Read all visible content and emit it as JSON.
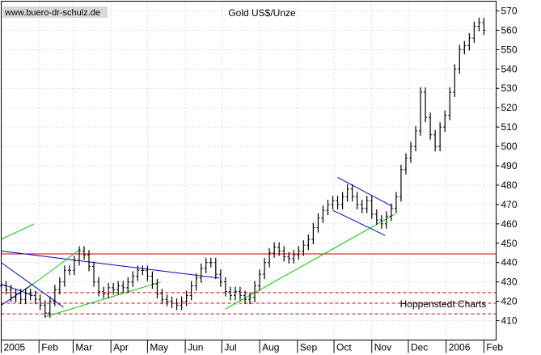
{
  "chart_data": {
    "type": "ohlc",
    "title": "Gold US$/Unze",
    "watermark": "www.buero-dr-schulz.de",
    "source": "Hoppenstedt Charts",
    "y_axis": {
      "position": "right",
      "ylim": [
        400,
        575
      ],
      "ticks": [
        410,
        420,
        430,
        440,
        450,
        460,
        470,
        480,
        490,
        500,
        510,
        520,
        530,
        540,
        550,
        560,
        570
      ]
    },
    "x_axis": {
      "labels": [
        "2005",
        "Feb",
        "Mar",
        "Apr",
        "May",
        "Jun",
        "Jul",
        "Aug",
        "Sep",
        "Oct",
        "Nov",
        "Dec",
        "2006",
        "Feb"
      ],
      "range": [
        "2005-01-01",
        "2006-02-11"
      ]
    },
    "grid": "dashed",
    "horizontal_lines": [
      {
        "value": 444.5,
        "style": "solid",
        "color": "#cc0000"
      },
      {
        "value": 424.5,
        "style": "dashed",
        "color": "#cc0000"
      },
      {
        "value": 419.0,
        "style": "dashed",
        "color": "#cc0000"
      },
      {
        "value": 413.5,
        "style": "dashed",
        "color": "#cc0000"
      }
    ],
    "trendlines": [
      {
        "color": "#0000cc",
        "from": [
          "2005-01-01",
          446
        ],
        "to": [
          "2005-06-29",
          432
        ]
      },
      {
        "color": "#0000cc",
        "from": [
          "2005-01-01",
          440
        ],
        "to": [
          "2005-02-21",
          417
        ]
      },
      {
        "color": "#0000cc",
        "from": [
          "2005-01-01",
          418
        ],
        "to": [
          "2005-01-27",
          429
        ]
      },
      {
        "color": "#0000cc",
        "from": [
          "2005-01-01",
          429
        ],
        "to": [
          "2005-01-27",
          423
        ]
      },
      {
        "color": "#0000cc",
        "from": [
          "2005-10-04",
          484
        ],
        "to": [
          "2005-11-18",
          469
        ]
      },
      {
        "color": "#0000cc",
        "from": [
          "2005-09-30",
          467
        ],
        "to": [
          "2005-11-12",
          454
        ]
      },
      {
        "color": "#00cc00",
        "from": [
          "2005-01-01",
          452
        ],
        "to": [
          "2005-01-28",
          460
        ]
      },
      {
        "color": "#00cc00",
        "from": [
          "2005-01-21",
          426
        ],
        "to": [
          "2005-03-07",
          447
        ]
      },
      {
        "color": "#00cc00",
        "from": [
          "2005-02-06",
          412
        ],
        "to": [
          "2005-05-12",
          430
        ]
      },
      {
        "color": "#00cc00",
        "from": [
          "2005-07-04",
          416
        ],
        "to": [
          "2005-11-20",
          465
        ]
      }
    ],
    "series": [
      {
        "color": "#000000",
        "points": [
          [
            "2005-01-01",
            428
          ],
          [
            "2005-01-05",
            426
          ],
          [
            "2005-01-09",
            422
          ],
          [
            "2005-01-13",
            424
          ],
          [
            "2005-01-17",
            421
          ],
          [
            "2005-01-21",
            424
          ],
          [
            "2005-01-25",
            423
          ],
          [
            "2005-01-29",
            421
          ],
          [
            "2005-02-02",
            418
          ],
          [
            "2005-02-06",
            414
          ],
          [
            "2005-02-10",
            420
          ],
          [
            "2005-02-14",
            426
          ],
          [
            "2005-02-18",
            430
          ],
          [
            "2005-02-22",
            436
          ],
          [
            "2005-02-26",
            436
          ],
          [
            "2005-03-02",
            441
          ],
          [
            "2005-03-06",
            446
          ],
          [
            "2005-03-10",
            444
          ],
          [
            "2005-03-14",
            438
          ],
          [
            "2005-03-18",
            430
          ],
          [
            "2005-03-22",
            425
          ],
          [
            "2005-03-26",
            424
          ],
          [
            "2005-03-30",
            427
          ],
          [
            "2005-04-03",
            426
          ],
          [
            "2005-04-07",
            428
          ],
          [
            "2005-04-11",
            427
          ],
          [
            "2005-04-15",
            430
          ],
          [
            "2005-04-19",
            433
          ],
          [
            "2005-04-23",
            436
          ],
          [
            "2005-04-27",
            436
          ],
          [
            "2005-05-01",
            433
          ],
          [
            "2005-05-05",
            429
          ],
          [
            "2005-05-09",
            424
          ],
          [
            "2005-05-13",
            421
          ],
          [
            "2005-05-17",
            420
          ],
          [
            "2005-05-21",
            419
          ],
          [
            "2005-05-25",
            418
          ],
          [
            "2005-05-29",
            420
          ],
          [
            "2005-06-02",
            423
          ],
          [
            "2005-06-06",
            428
          ],
          [
            "2005-06-10",
            432
          ],
          [
            "2005-06-14",
            437
          ],
          [
            "2005-06-18",
            440
          ],
          [
            "2005-06-22",
            440
          ],
          [
            "2005-06-26",
            434
          ],
          [
            "2005-06-30",
            430
          ],
          [
            "2005-07-04",
            425
          ],
          [
            "2005-07-08",
            423
          ],
          [
            "2005-07-12",
            425
          ],
          [
            "2005-07-16",
            423
          ],
          [
            "2005-07-20",
            421
          ],
          [
            "2005-07-24",
            422
          ],
          [
            "2005-07-28",
            428
          ],
          [
            "2005-08-01",
            434
          ],
          [
            "2005-08-05",
            440
          ],
          [
            "2005-08-09",
            445
          ],
          [
            "2005-08-13",
            448
          ],
          [
            "2005-08-17",
            446
          ],
          [
            "2005-08-21",
            443
          ],
          [
            "2005-08-25",
            442
          ],
          [
            "2005-08-29",
            444
          ],
          [
            "2005-09-02",
            446
          ],
          [
            "2005-09-06",
            449
          ],
          [
            "2005-09-10",
            452
          ],
          [
            "2005-09-14",
            458
          ],
          [
            "2005-09-18",
            463
          ],
          [
            "2005-09-22",
            467
          ],
          [
            "2005-09-26",
            470
          ],
          [
            "2005-09-30",
            472
          ],
          [
            "2005-10-04",
            470
          ],
          [
            "2005-10-08",
            474
          ],
          [
            "2005-10-12",
            478
          ],
          [
            "2005-10-16",
            474
          ],
          [
            "2005-10-20",
            470
          ],
          [
            "2005-10-24",
            468
          ],
          [
            "2005-10-28",
            472
          ],
          [
            "2005-11-01",
            465
          ],
          [
            "2005-11-05",
            462
          ],
          [
            "2005-11-09",
            460
          ],
          [
            "2005-11-13",
            464
          ],
          [
            "2005-11-17",
            468
          ],
          [
            "2005-11-21",
            474
          ],
          [
            "2005-11-25",
            488
          ],
          [
            "2005-11-29",
            494
          ],
          [
            "2005-12-03",
            500
          ],
          [
            "2005-12-07",
            508
          ],
          [
            "2005-12-11",
            528
          ],
          [
            "2005-12-15",
            515
          ],
          [
            "2005-12-19",
            506
          ],
          [
            "2005-12-23",
            500
          ],
          [
            "2005-12-27",
            510
          ],
          [
            "2005-12-31",
            516
          ],
          [
            "2006-01-04",
            528
          ],
          [
            "2006-01-08",
            540
          ],
          [
            "2006-01-12",
            550
          ],
          [
            "2006-01-16",
            552
          ],
          [
            "2006-01-20",
            556
          ],
          [
            "2006-01-24",
            562
          ],
          [
            "2006-01-28",
            564
          ],
          [
            "2006-02-01",
            560
          ]
        ]
      }
    ]
  }
}
